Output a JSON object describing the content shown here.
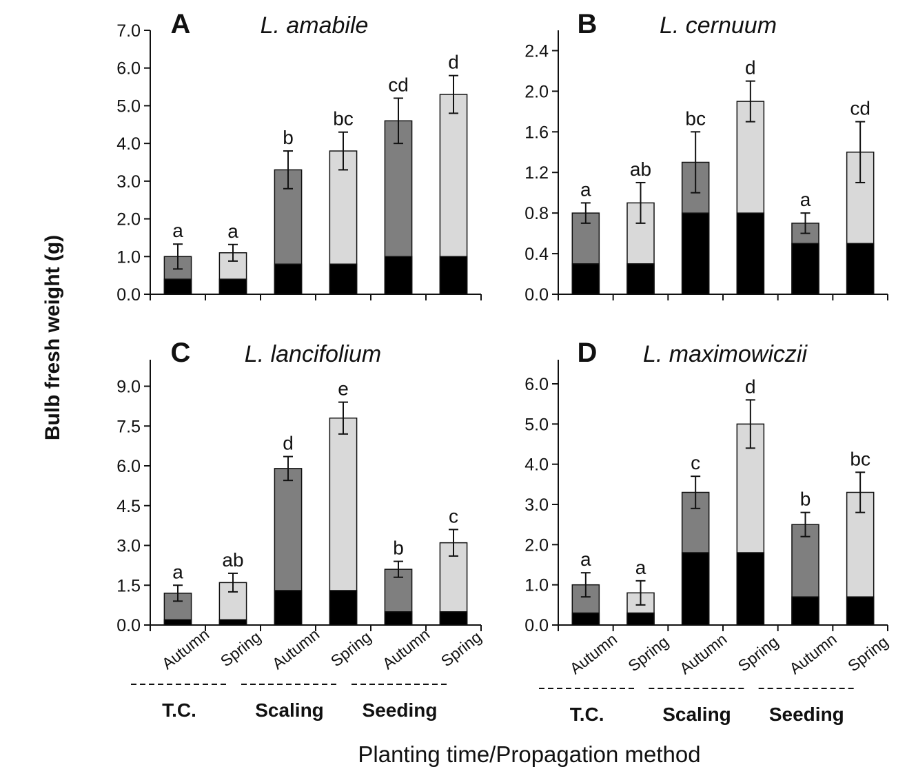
{
  "figure": {
    "ylabel": "Bulb fresh weight (g)",
    "xlabel": "Planting time/Propagation method"
  },
  "colors": {
    "base": "#000000",
    "autumn": "#7f7f7f",
    "spring": "#d9d9d9",
    "outline": "#111111"
  },
  "chart_data": [
    {
      "type": "bar",
      "panel": "A",
      "title": "L. amabile",
      "categories": [
        "Autumn",
        "Spring",
        "Autumn",
        "Spring",
        "Autumn",
        "Spring"
      ],
      "groups": [
        {
          "label": "T.C.",
          "span": [
            0,
            1
          ]
        },
        {
          "label": "Scaling",
          "span": [
            2,
            3
          ]
        },
        {
          "label": "Seeding",
          "span": [
            4,
            5
          ]
        }
      ],
      "totals": [
        1.0,
        1.1,
        3.3,
        3.8,
        4.6,
        5.3
      ],
      "base": [
        0.4,
        0.4,
        0.8,
        0.8,
        1.0,
        1.0
      ],
      "errors": [
        0.33,
        0.22,
        0.5,
        0.5,
        0.6,
        0.5
      ],
      "letters": [
        "a",
        "a",
        "b",
        "bc",
        "cd",
        "d"
      ],
      "ylim": [
        0,
        7.0
      ],
      "yticks": [
        "0.0",
        "1.0",
        "2.0",
        "3.0",
        "4.0",
        "5.0",
        "6.0",
        "7.0"
      ]
    },
    {
      "type": "bar",
      "panel": "B",
      "title": "L. cernuum",
      "categories": [
        "Autumn",
        "Spring",
        "Autumn",
        "Spring",
        "Autumn",
        "Spring"
      ],
      "groups": [
        {
          "label": "T.C.",
          "span": [
            0,
            1
          ]
        },
        {
          "label": "Scaling",
          "span": [
            2,
            3
          ]
        },
        {
          "label": "Seeding",
          "span": [
            4,
            5
          ]
        }
      ],
      "totals": [
        0.8,
        0.9,
        1.3,
        1.9,
        0.7,
        1.4
      ],
      "base": [
        0.3,
        0.3,
        0.8,
        0.8,
        0.5,
        0.5
      ],
      "errors": [
        0.1,
        0.2,
        0.3,
        0.2,
        0.1,
        0.3
      ],
      "letters": [
        "a",
        "ab",
        "bc",
        "d",
        "a",
        "cd"
      ],
      "ylim": [
        0,
        2.6
      ],
      "yticks": [
        "0.0",
        "0.4",
        "0.8",
        "1.2",
        "1.6",
        "2.0",
        "2.4"
      ]
    },
    {
      "type": "bar",
      "panel": "C",
      "title": "L. lancifolium",
      "categories": [
        "Autumn",
        "Spring",
        "Autumn",
        "Spring",
        "Autumn",
        "Spring"
      ],
      "groups": [
        {
          "label": "T.C.",
          "span": [
            0,
            1
          ]
        },
        {
          "label": "Scaling",
          "span": [
            2,
            3
          ]
        },
        {
          "label": "Seeding",
          "span": [
            4,
            5
          ]
        }
      ],
      "totals": [
        1.2,
        1.6,
        5.9,
        7.8,
        2.1,
        3.1
      ],
      "base": [
        0.2,
        0.2,
        1.3,
        1.3,
        0.5,
        0.5
      ],
      "errors": [
        0.3,
        0.35,
        0.45,
        0.6,
        0.3,
        0.5
      ],
      "letters": [
        "a",
        "ab",
        "d",
        "e",
        "b",
        "c"
      ],
      "ylim": [
        0,
        10.0
      ],
      "yticks": [
        "0.0",
        "1.5",
        "3.0",
        "4.5",
        "6.0",
        "7.5",
        "9.0"
      ]
    },
    {
      "type": "bar",
      "panel": "D",
      "title": "L. maximowiczii",
      "categories": [
        "Autumn",
        "Spring",
        "Autumn",
        "Spring",
        "Autumn",
        "Spring"
      ],
      "groups": [
        {
          "label": "T.C.",
          "span": [
            0,
            1
          ]
        },
        {
          "label": "Scaling",
          "span": [
            2,
            3
          ]
        },
        {
          "label": "Seeding",
          "span": [
            4,
            5
          ]
        }
      ],
      "totals": [
        1.0,
        0.8,
        3.3,
        5.0,
        2.5,
        3.3
      ],
      "base": [
        0.3,
        0.3,
        1.8,
        1.8,
        0.7,
        0.7
      ],
      "errors": [
        0.3,
        0.3,
        0.4,
        0.6,
        0.3,
        0.5
      ],
      "letters": [
        "a",
        "a",
        "c",
        "d",
        "b",
        "bc"
      ],
      "ylim": [
        0,
        6.6
      ],
      "yticks": [
        "0.0",
        "1.0",
        "2.0",
        "3.0",
        "4.0",
        "5.0",
        "6.0"
      ]
    }
  ]
}
